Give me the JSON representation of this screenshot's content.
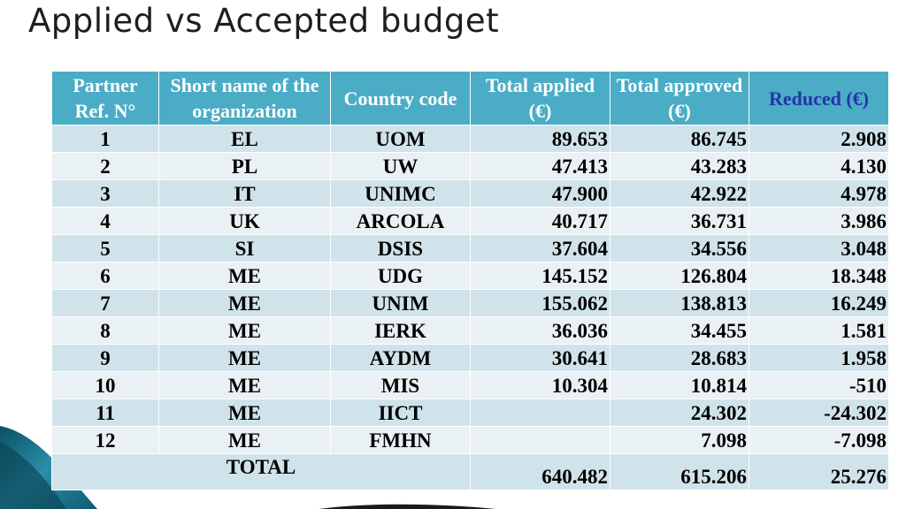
{
  "title": "Applied vs Accepted budget",
  "colors": {
    "header_bg": "#4bacc6",
    "header_text": "#ffffff",
    "reduced_header_text": "#2434a8",
    "row_dark": "#d0e3ea",
    "row_light": "#e9f1f5"
  },
  "headers": {
    "ref": "Partner Ref. N°",
    "short_name": "Short name of the organization",
    "country": "Country code",
    "applied": "Total applied (€)",
    "approved": "Total approved (€)",
    "reduced": "Reduced (€)"
  },
  "rows": [
    {
      "ref": "1",
      "short": "EL",
      "code": "UOM",
      "applied": "89.653",
      "approved": "86.745",
      "reduced": "2.908"
    },
    {
      "ref": "2",
      "short": "PL",
      "code": "UW",
      "applied": "47.413",
      "approved": "43.283",
      "reduced": "4.130"
    },
    {
      "ref": "3",
      "short": "IT",
      "code": "UNIMC",
      "applied": "47.900",
      "approved": "42.922",
      "reduced": "4.978"
    },
    {
      "ref": "4",
      "short": "UK",
      "code": "ARCOLA",
      "applied": "40.717",
      "approved": "36.731",
      "reduced": "3.986"
    },
    {
      "ref": "5",
      "short": "SI",
      "code": "DSIS",
      "applied": "37.604",
      "approved": "34.556",
      "reduced": "3.048"
    },
    {
      "ref": "6",
      "short": "ME",
      "code": "UDG",
      "applied": "145.152",
      "approved": "126.804",
      "reduced": "18.348"
    },
    {
      "ref": "7",
      "short": "ME",
      "code": "UNIM",
      "applied": "155.062",
      "approved": "138.813",
      "reduced": "16.249"
    },
    {
      "ref": "8",
      "short": "ME",
      "code": "IERK",
      "applied": "36.036",
      "approved": "34.455",
      "reduced": "1.581"
    },
    {
      "ref": "9",
      "short": "ME",
      "code": "AYDM",
      "applied": "30.641",
      "approved": "28.683",
      "reduced": "1.958"
    },
    {
      "ref": "10",
      "short": "ME",
      "code": "MIS",
      "applied": "10.304",
      "approved": "10.814",
      "reduced": "-510"
    },
    {
      "ref": "11",
      "short": "ME",
      "code": "IICT",
      "applied": "",
      "approved": "24.302",
      "reduced": "-24.302"
    },
    {
      "ref": "12",
      "short": "ME",
      "code": "FMHN",
      "applied": "",
      "approved": "7.098",
      "reduced": "-7.098"
    }
  ],
  "total": {
    "label": "TOTAL",
    "applied": "640.482",
    "approved": "615.206",
    "reduced": "25.276"
  }
}
